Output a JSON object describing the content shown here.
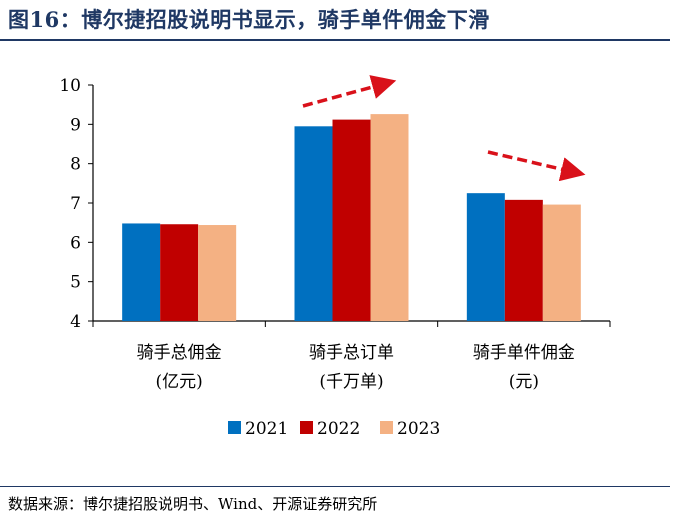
{
  "figure": {
    "title": "图16：博尔捷招股说明书显示，骑手单件佣金下滑",
    "source": "数据来源：博尔捷招股说明书、Wind、开源证券研究所"
  },
  "colors": {
    "title": "#1f3864",
    "arrow": "#d9111a"
  },
  "chart_data": {
    "type": "bar",
    "categories": [
      [
        "骑手总佣金",
        "(亿元)"
      ],
      [
        "骑手总订单",
        "(千万单)"
      ],
      [
        "骑手单件佣金",
        "(元)"
      ]
    ],
    "series": [
      {
        "name": "2021",
        "color": "#0070c0",
        "values": [
          6.48,
          8.95,
          7.25
        ]
      },
      {
        "name": "2022",
        "color": "#c00000",
        "values": [
          6.46,
          9.12,
          7.08
        ]
      },
      {
        "name": "2023",
        "color": "#f4b183",
        "values": [
          6.44,
          9.26,
          6.96
        ]
      }
    ],
    "ylim": [
      4,
      10
    ],
    "yticks": [
      4,
      5,
      6,
      7,
      8,
      9,
      10
    ],
    "grid": false,
    "legend": "bottom-center",
    "annotations": [
      "upward-trend-arrow",
      "downward-trend-arrow"
    ]
  }
}
